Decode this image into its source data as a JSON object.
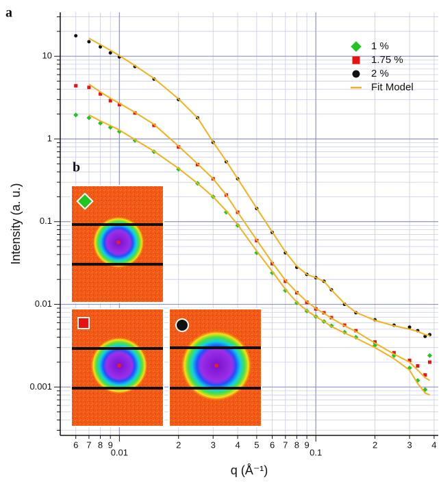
{
  "chart_data": {
    "type": "scatter",
    "log_x": true,
    "log_y": true,
    "grid": true,
    "legend": "upper right",
    "annotations": [
      "a",
      "b"
    ],
    "xlabel": "q (Å⁻¹)",
    "ylabel": "Intensity (a. u.)",
    "xlim": [
      0.005,
      0.42
    ],
    "ylim": [
      0.00026,
      34
    ],
    "xticks": [
      {
        "value": 0.006,
        "label": "6"
      },
      {
        "value": 0.007,
        "label": "7"
      },
      {
        "value": 0.008,
        "label": "8"
      },
      {
        "value": 0.009,
        "label": "9"
      },
      0.01,
      {
        "value": 0.02,
        "label": "2"
      },
      {
        "value": 0.03,
        "label": "3"
      },
      {
        "value": 0.04,
        "label": "4"
      },
      {
        "value": 0.05,
        "label": "5"
      },
      {
        "value": 0.06,
        "label": "6"
      },
      {
        "value": 0.07,
        "label": "7"
      },
      {
        "value": 0.08,
        "label": "8"
      },
      {
        "value": 0.09,
        "label": "9"
      },
      0.1,
      {
        "value": 0.2,
        "label": "2"
      },
      {
        "value": 0.3,
        "label": "3"
      },
      {
        "value": 0.4,
        "label": "4"
      }
    ],
    "yticks": [
      0.001,
      0.01,
      0.1,
      1,
      10
    ],
    "yminorticks": [
      0.0003,
      0.0004,
      0.0005,
      0.0006,
      0.0007,
      0.0008,
      0.0009,
      0.002,
      0.003,
      0.004,
      0.005,
      0.006,
      0.007,
      0.008,
      0.009,
      0.02,
      0.03,
      0.04,
      0.05,
      0.06,
      0.07,
      0.08,
      0.09,
      0.2,
      0.3,
      0.4,
      0.5,
      0.6,
      0.7,
      0.8,
      0.9,
      2,
      3,
      4,
      5,
      6,
      7,
      8,
      9,
      20,
      30
    ],
    "x": [
      0.006,
      0.007,
      0.008,
      0.009,
      0.01,
      0.012,
      0.015,
      0.02,
      0.025,
      0.03,
      0.035,
      0.04,
      0.05,
      0.06,
      0.07,
      0.08,
      0.09,
      0.1,
      0.11,
      0.12,
      0.14,
      0.16,
      0.2,
      0.25,
      0.3,
      0.33,
      0.36,
      0.38
    ],
    "series": [
      {
        "name": "1 %",
        "color": "#22c422",
        "marker": "diamond",
        "values": [
          1.95,
          1.8,
          1.55,
          1.38,
          1.23,
          0.96,
          0.7,
          0.43,
          0.29,
          0.2,
          0.13,
          0.09,
          0.042,
          0.024,
          0.0147,
          0.0104,
          0.0083,
          0.0071,
          0.0062,
          0.0055,
          0.0046,
          0.004,
          0.0032,
          0.0024,
          0.0017,
          0.0012,
          0.00093,
          0.0024
        ]
      },
      {
        "name": "1.75 %",
        "color": "#e81010",
        "marker": "square",
        "values": [
          4.4,
          4.2,
          3.5,
          2.9,
          2.6,
          2.06,
          1.46,
          0.8,
          0.49,
          0.33,
          0.21,
          0.13,
          0.059,
          0.031,
          0.019,
          0.0138,
          0.0106,
          0.0088,
          0.0079,
          0.0069,
          0.0056,
          0.0048,
          0.0035,
          0.0026,
          0.0021,
          0.0018,
          0.0014,
          0.002
        ]
      },
      {
        "name": "2 %",
        "color": "#111111",
        "marker": "circle",
        "values": [
          17.7,
          15,
          13,
          11,
          9.8,
          7.5,
          5.3,
          3.0,
          1.8,
          0.91,
          0.53,
          0.33,
          0.144,
          0.074,
          0.042,
          0.028,
          0.023,
          0.021,
          0.019,
          0.015,
          0.01,
          0.0079,
          0.0065,
          0.0056,
          0.0053,
          0.0048,
          0.0041,
          0.0043
        ]
      }
    ],
    "fit": {
      "name": "Fit Model",
      "color": "#f2b21c",
      "curves": [
        [
          null,
          1.95,
          1.65,
          1.45,
          1.28,
          0.98,
          0.71,
          0.44,
          0.29,
          0.2,
          0.135,
          0.092,
          0.044,
          0.025,
          0.0152,
          0.0106,
          0.0084,
          0.0071,
          0.0062,
          0.0054,
          0.0045,
          0.0039,
          0.003,
          0.0022,
          0.0016,
          0.0011,
          0.00085,
          0.0008
        ],
        [
          null,
          4.6,
          3.7,
          3.1,
          2.7,
          2.1,
          1.5,
          0.82,
          0.5,
          0.33,
          0.21,
          0.13,
          0.06,
          0.032,
          0.0195,
          0.014,
          0.0108,
          0.0089,
          0.0078,
          0.0068,
          0.0055,
          0.0047,
          0.0034,
          0.0025,
          0.002,
          0.0016,
          0.0013,
          0.0012
        ],
        [
          null,
          16.5,
          13.8,
          11.8,
          10.2,
          7.7,
          5.4,
          3.05,
          1.8,
          0.92,
          0.54,
          0.33,
          0.145,
          0.075,
          0.043,
          0.029,
          0.023,
          0.021,
          0.019,
          0.015,
          0.0102,
          0.008,
          0.0064,
          0.0055,
          0.005,
          0.0047,
          0.0043,
          0.0042
        ]
      ]
    }
  }
}
